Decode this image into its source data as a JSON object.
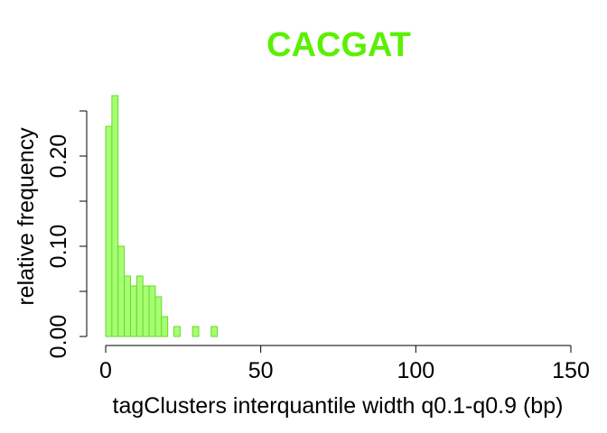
{
  "chart_data": {
    "type": "bar",
    "title": "CACGAT",
    "xlabel": "tagClusters interquantile width q0.1-q0.9 (bp)",
    "ylabel": "relative frequency",
    "xlim": [
      0,
      150
    ],
    "ylim": [
      0,
      0.25
    ],
    "x_ticks": [
      "0",
      "50",
      "100",
      "150"
    ],
    "y_ticks": [
      "0.00",
      "0.10",
      "0.20"
    ],
    "bin_width": 2,
    "bins": [
      {
        "start": 0,
        "value": 0.233
      },
      {
        "start": 2,
        "value": 0.267
      },
      {
        "start": 4,
        "value": 0.1
      },
      {
        "start": 6,
        "value": 0.067
      },
      {
        "start": 8,
        "value": 0.056
      },
      {
        "start": 10,
        "value": 0.067
      },
      {
        "start": 12,
        "value": 0.056
      },
      {
        "start": 14,
        "value": 0.056
      },
      {
        "start": 16,
        "value": 0.044
      },
      {
        "start": 18,
        "value": 0.022
      },
      {
        "start": 20,
        "value": 0.0
      },
      {
        "start": 22,
        "value": 0.011
      },
      {
        "start": 24,
        "value": 0.0
      },
      {
        "start": 26,
        "value": 0.0
      },
      {
        "start": 28,
        "value": 0.011
      },
      {
        "start": 30,
        "value": 0.0
      },
      {
        "start": 32,
        "value": 0.0
      },
      {
        "start": 34,
        "value": 0.011
      }
    ],
    "colors": {
      "title": "#5af000",
      "bar_fill": "#a6ff73",
      "bar_stroke": "#6ad82a"
    },
    "grid": false
  }
}
